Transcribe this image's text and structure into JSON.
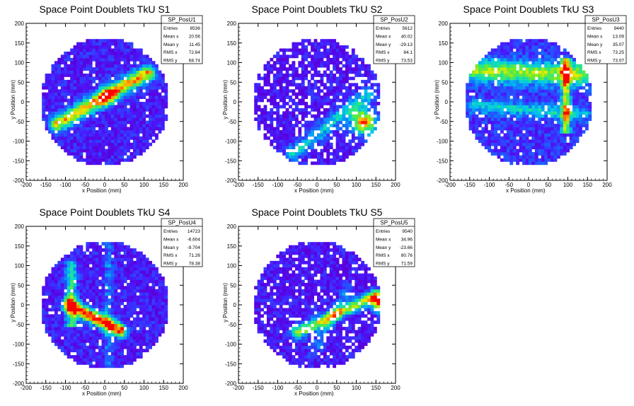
{
  "chart_data": [
    {
      "type": "heatmap",
      "title": "Space Point Doublets TkU S1",
      "xlabel": "x Position (mm)",
      "ylabel": "y Position (mm)",
      "xlim": [
        -200,
        200
      ],
      "ylim": [
        -200,
        200
      ],
      "xticks": [
        -200,
        -150,
        -100,
        -50,
        0,
        50,
        100,
        150,
        200
      ],
      "yticks": [
        -200,
        -150,
        -100,
        -50,
        0,
        50,
        100,
        150,
        200
      ],
      "stats": {
        "name": "SP_PosU1",
        "rows": [
          [
            "Entries",
            "8536"
          ],
          [
            "Mean x",
            "20.56"
          ],
          [
            "Mean y",
            "11.45"
          ],
          [
            "RMS x",
            "72.64"
          ],
          [
            "RMS y",
            "68.74"
          ]
        ]
      },
      "pattern": "diagonal band from lower-left to upper-right, peak near (5, 15)"
    },
    {
      "type": "heatmap",
      "title": "Space Point Doublets TkU S2",
      "xlabel": "x Position (mm)",
      "ylabel": "y Position (mm)",
      "xlim": [
        -200,
        200
      ],
      "ylim": [
        -200,
        200
      ],
      "xticks": [
        -200,
        -150,
        -100,
        -50,
        0,
        50,
        100,
        150,
        200
      ],
      "yticks": [
        -200,
        -150,
        -100,
        -50,
        0,
        50,
        100,
        150,
        200
      ],
      "stats": {
        "name": "SP_PosU2",
        "rows": [
          [
            "Entries",
            "5612"
          ],
          [
            "Mean x",
            "40.02"
          ],
          [
            "Mean y",
            "-29.13"
          ],
          [
            "RMS x",
            "84.1"
          ],
          [
            "RMS y",
            "73.53"
          ]
        ]
      },
      "pattern": "hot spots near right edge around (120, -50)"
    },
    {
      "type": "heatmap",
      "title": "Space Point Doublets TkU S3",
      "xlabel": "x Position (mm)",
      "ylabel": "y Position (mm)",
      "xlim": [
        -200,
        200
      ],
      "ylim": [
        -200,
        200
      ],
      "xticks": [
        -200,
        -150,
        -100,
        -50,
        0,
        50,
        100,
        150,
        200
      ],
      "yticks": [
        -200,
        -150,
        -100,
        -50,
        0,
        50,
        100,
        150,
        200
      ],
      "stats": {
        "name": "SP_PosU3",
        "rows": [
          [
            "Entries",
            "9440"
          ],
          [
            "Mean x",
            "13.09"
          ],
          [
            "Mean y",
            "35.07"
          ],
          [
            "RMS x",
            "73.25"
          ],
          [
            "RMS y",
            "73.07"
          ]
        ]
      },
      "pattern": "upper band and vertical stripe near x=90"
    },
    {
      "type": "heatmap",
      "title": "Space Point Doublets TkU S4",
      "xlabel": "x Position (mm)",
      "ylabel": "y Position (mm)",
      "xlim": [
        -200,
        200
      ],
      "ylim": [
        -200,
        200
      ],
      "xticks": [
        -200,
        -150,
        -100,
        -50,
        0,
        50,
        100,
        150,
        200
      ],
      "yticks": [
        -200,
        -150,
        -100,
        -50,
        0,
        50,
        100,
        150,
        200
      ],
      "stats": {
        "name": "SP_PosU4",
        "rows": [
          [
            "Entries",
            "14723"
          ],
          [
            "Mean x",
            "-6.604"
          ],
          [
            "Mean y",
            "-9.704"
          ],
          [
            "RMS x",
            "71.26"
          ],
          [
            "RMS y",
            "78.38"
          ]
        ]
      },
      "pattern": "band from (-90, 0) down to (40, -65), hot near (-30, -40)"
    },
    {
      "type": "heatmap",
      "title": "Space Point Doublets TkU S5",
      "xlabel": "x Position (mm)",
      "ylabel": "y Position (mm)",
      "xlim": [
        -200,
        200
      ],
      "ylim": [
        -200,
        200
      ],
      "xticks": [
        -200,
        -150,
        -100,
        -50,
        0,
        50,
        100,
        150,
        200
      ],
      "yticks": [
        -200,
        -150,
        -100,
        -50,
        0,
        50,
        100,
        150,
        200
      ],
      "stats": {
        "name": "SP_PosU5",
        "rows": [
          [
            "Entries",
            "9540"
          ],
          [
            "Mean x",
            "34.96"
          ],
          [
            "Mean y",
            "-23.66"
          ],
          [
            "RMS x",
            "80.76"
          ],
          [
            "RMS y",
            "71.59"
          ]
        ]
      },
      "pattern": "diagonal band from (-50, -70) to (150, 20), hot at right edge near (160, 0)"
    }
  ]
}
